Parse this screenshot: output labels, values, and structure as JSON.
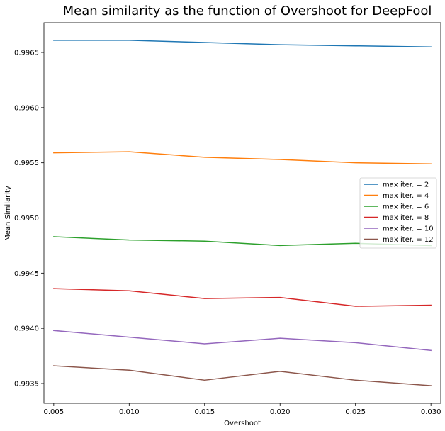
{
  "chart_data": {
    "type": "line",
    "title": "Mean similarity as the function of Overshoot for DeepFool",
    "xlabel": "Overshoot",
    "ylabel": "Mean Similarity",
    "x": [
      0.005,
      0.01,
      0.015,
      0.02,
      0.025,
      0.03
    ],
    "x_tick_labels": [
      "0.005",
      "0.010",
      "0.015",
      "0.020",
      "0.025",
      "0.030"
    ],
    "y_ticks": [
      0.9935,
      0.994,
      0.9945,
      0.995,
      0.9955,
      0.996,
      0.9965
    ],
    "y_tick_labels": [
      "0.9935",
      "0.9940",
      "0.9945",
      "0.9950",
      "0.9955",
      "0.9960",
      "0.9965"
    ],
    "xlim": [
      0.00435,
      0.03065
    ],
    "ylim": [
      0.99332,
      0.99677
    ],
    "grid": false,
    "legend_position": "center-right",
    "series": [
      {
        "name": "max iter. = 2",
        "color": "#1f77b4",
        "values": [
          0.99661,
          0.99661,
          0.99659,
          0.99657,
          0.99656,
          0.99655
        ]
      },
      {
        "name": "max iter. = 4",
        "color": "#ff7f0e",
        "values": [
          0.99559,
          0.9956,
          0.99555,
          0.99553,
          0.9955,
          0.99549
        ]
      },
      {
        "name": "max iter. = 6",
        "color": "#2ca02c",
        "values": [
          0.99483,
          0.9948,
          0.99479,
          0.99475,
          0.99477,
          0.99475
        ]
      },
      {
        "name": "max iter. = 8",
        "color": "#d62728",
        "values": [
          0.99436,
          0.99434,
          0.99427,
          0.99428,
          0.9942,
          0.99421
        ]
      },
      {
        "name": "max iter. = 10",
        "color": "#9467bd",
        "values": [
          0.99398,
          0.99392,
          0.99386,
          0.99391,
          0.99387,
          0.9938
        ]
      },
      {
        "name": "max iter. = 12",
        "color": "#8c564b",
        "values": [
          0.99366,
          0.99362,
          0.99353,
          0.99361,
          0.99353,
          0.99348
        ]
      }
    ]
  }
}
